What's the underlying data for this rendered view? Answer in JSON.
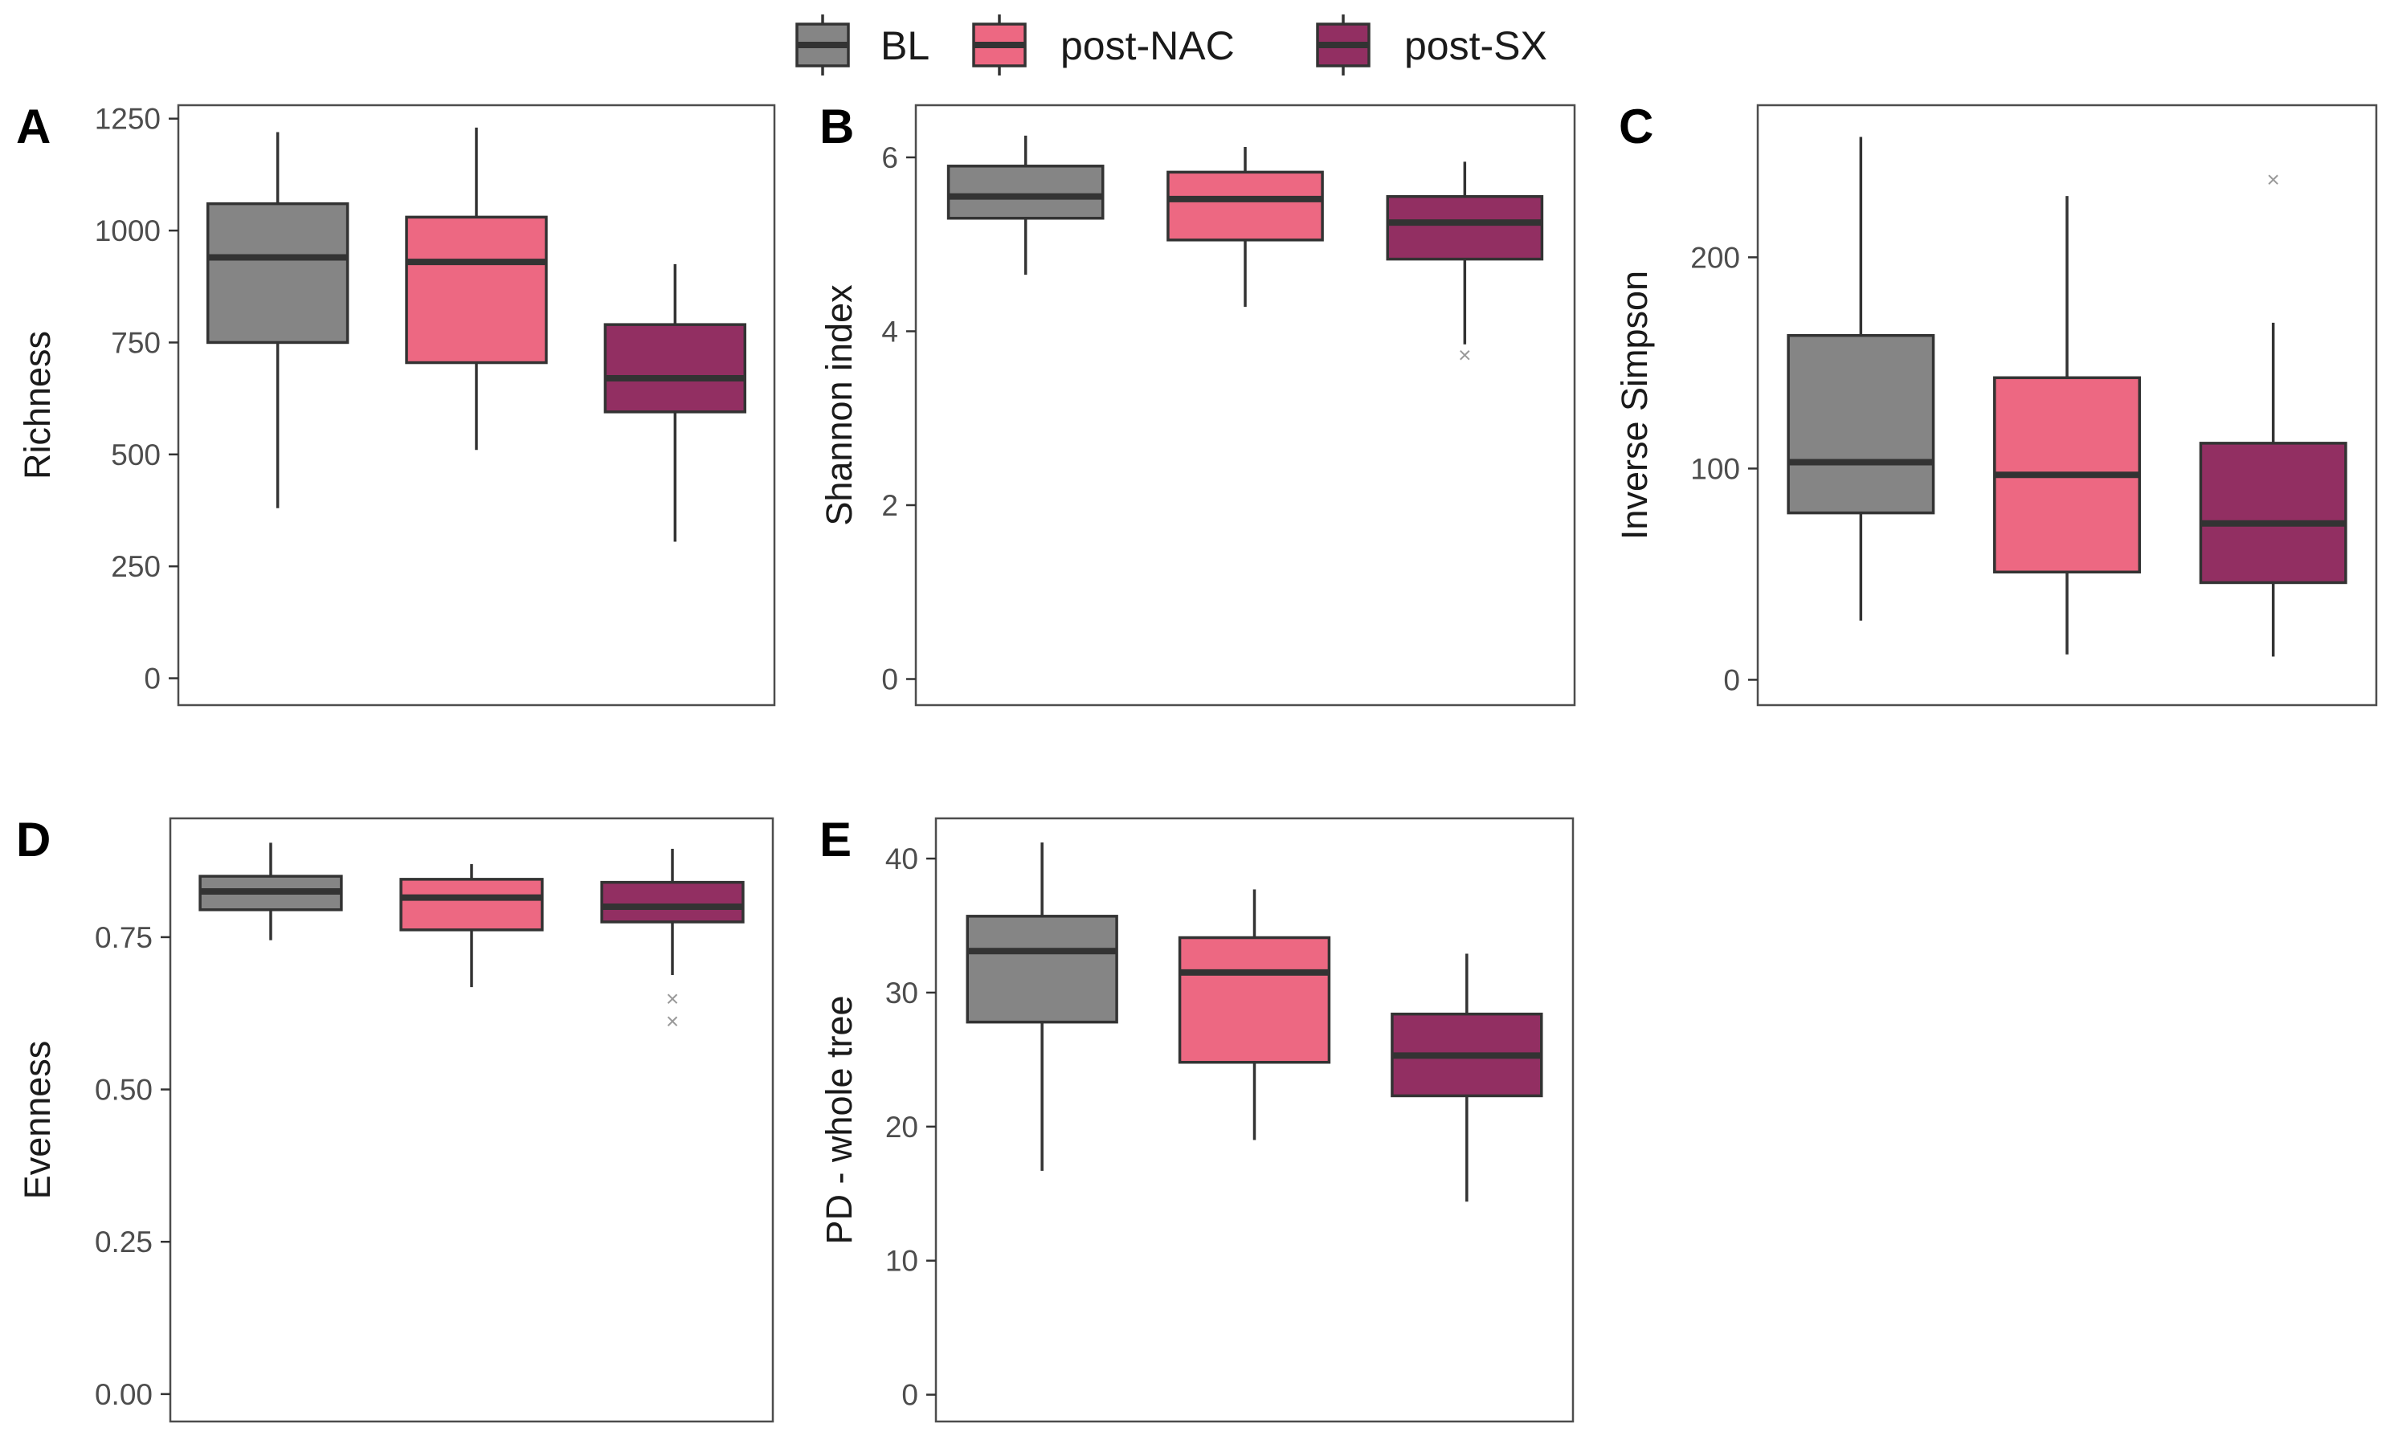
{
  "colors": {
    "BL": "#858585",
    "post-NAC": "#ED6882",
    "post-SX": "#922F62"
  },
  "legend": {
    "items": [
      "BL",
      "post-NAC",
      "post-SX"
    ]
  },
  "chart_data": [
    {
      "type": "box",
      "panel": "A",
      "ylabel": "Richness",
      "ylim": [
        -60,
        1280
      ],
      "yticks": [
        0,
        250,
        500,
        750,
        1000,
        1250
      ],
      "ytick_labels": [
        "0",
        "250",
        "500",
        "750",
        "1000",
        "1250"
      ],
      "groups": [
        {
          "name": "BL",
          "min": 380,
          "q1": 750,
          "median": 940,
          "q3": 1060,
          "max": 1220,
          "outliers": []
        },
        {
          "name": "post-NAC",
          "min": 510,
          "q1": 705,
          "median": 930,
          "q3": 1030,
          "max": 1230,
          "outliers": []
        },
        {
          "name": "post-SX",
          "min": 305,
          "q1": 595,
          "median": 670,
          "q3": 790,
          "max": 925,
          "outliers": []
        }
      ]
    },
    {
      "type": "box",
      "panel": "B",
      "ylabel": "Shannon index",
      "ylim": [
        -0.3,
        6.6
      ],
      "yticks": [
        0,
        2,
        4,
        6
      ],
      "ytick_labels": [
        "0",
        "2",
        "4",
        "6"
      ],
      "groups": [
        {
          "name": "BL",
          "min": 4.65,
          "q1": 5.3,
          "median": 5.55,
          "q3": 5.9,
          "max": 6.25,
          "outliers": []
        },
        {
          "name": "post-NAC",
          "min": 4.28,
          "q1": 5.05,
          "median": 5.52,
          "q3": 5.83,
          "max": 6.12,
          "outliers": []
        },
        {
          "name": "post-SX",
          "min": 3.85,
          "q1": 4.83,
          "median": 5.25,
          "q3": 5.55,
          "max": 5.95,
          "outliers": [
            3.73
          ]
        }
      ]
    },
    {
      "type": "box",
      "panel": "C",
      "ylabel": "Inverse Simpson",
      "ylim": [
        -12,
        272
      ],
      "yticks": [
        0,
        100,
        200
      ],
      "ytick_labels": [
        "0",
        "100",
        "200"
      ],
      "groups": [
        {
          "name": "BL",
          "min": 28,
          "q1": 79,
          "median": 103,
          "q3": 163,
          "max": 257,
          "outliers": []
        },
        {
          "name": "post-NAC",
          "min": 12,
          "q1": 51,
          "median": 97,
          "q3": 143,
          "max": 229,
          "outliers": []
        },
        {
          "name": "post-SX",
          "min": 11,
          "q1": 46,
          "median": 74,
          "q3": 112,
          "max": 169,
          "outliers": [
            237
          ]
        }
      ]
    },
    {
      "type": "box",
      "panel": "D",
      "ylabel": "Evenness",
      "ylim": [
        -0.045,
        0.945
      ],
      "yticks": [
        0,
        0.25,
        0.5,
        0.75
      ],
      "ytick_labels": [
        "0.00",
        "0.25",
        "0.50",
        "0.75"
      ],
      "groups": [
        {
          "name": "BL",
          "min": 0.745,
          "q1": 0.795,
          "median": 0.825,
          "q3": 0.85,
          "max": 0.905,
          "outliers": []
        },
        {
          "name": "post-NAC",
          "min": 0.668,
          "q1": 0.762,
          "median": 0.815,
          "q3": 0.845,
          "max": 0.87,
          "outliers": []
        },
        {
          "name": "post-SX",
          "min": 0.688,
          "q1": 0.775,
          "median": 0.8,
          "q3": 0.84,
          "max": 0.895,
          "outliers": [
            0.65,
            0.613
          ]
        }
      ]
    },
    {
      "type": "box",
      "panel": "E",
      "ylabel": "PD - whole tree",
      "ylim": [
        -2,
        43
      ],
      "yticks": [
        0,
        10,
        20,
        30,
        40
      ],
      "ytick_labels": [
        "0",
        "10",
        "20",
        "30",
        "40"
      ],
      "groups": [
        {
          "name": "BL",
          "min": 16.7,
          "q1": 27.8,
          "median": 33.1,
          "q3": 35.7,
          "max": 41.2,
          "outliers": []
        },
        {
          "name": "post-NAC",
          "min": 19,
          "q1": 24.8,
          "median": 31.5,
          "q3": 34.1,
          "max": 37.7,
          "outliers": []
        },
        {
          "name": "post-SX",
          "min": 14.4,
          "q1": 22.3,
          "median": 25.3,
          "q3": 28.4,
          "max": 32.9,
          "outliers": []
        }
      ]
    }
  ]
}
